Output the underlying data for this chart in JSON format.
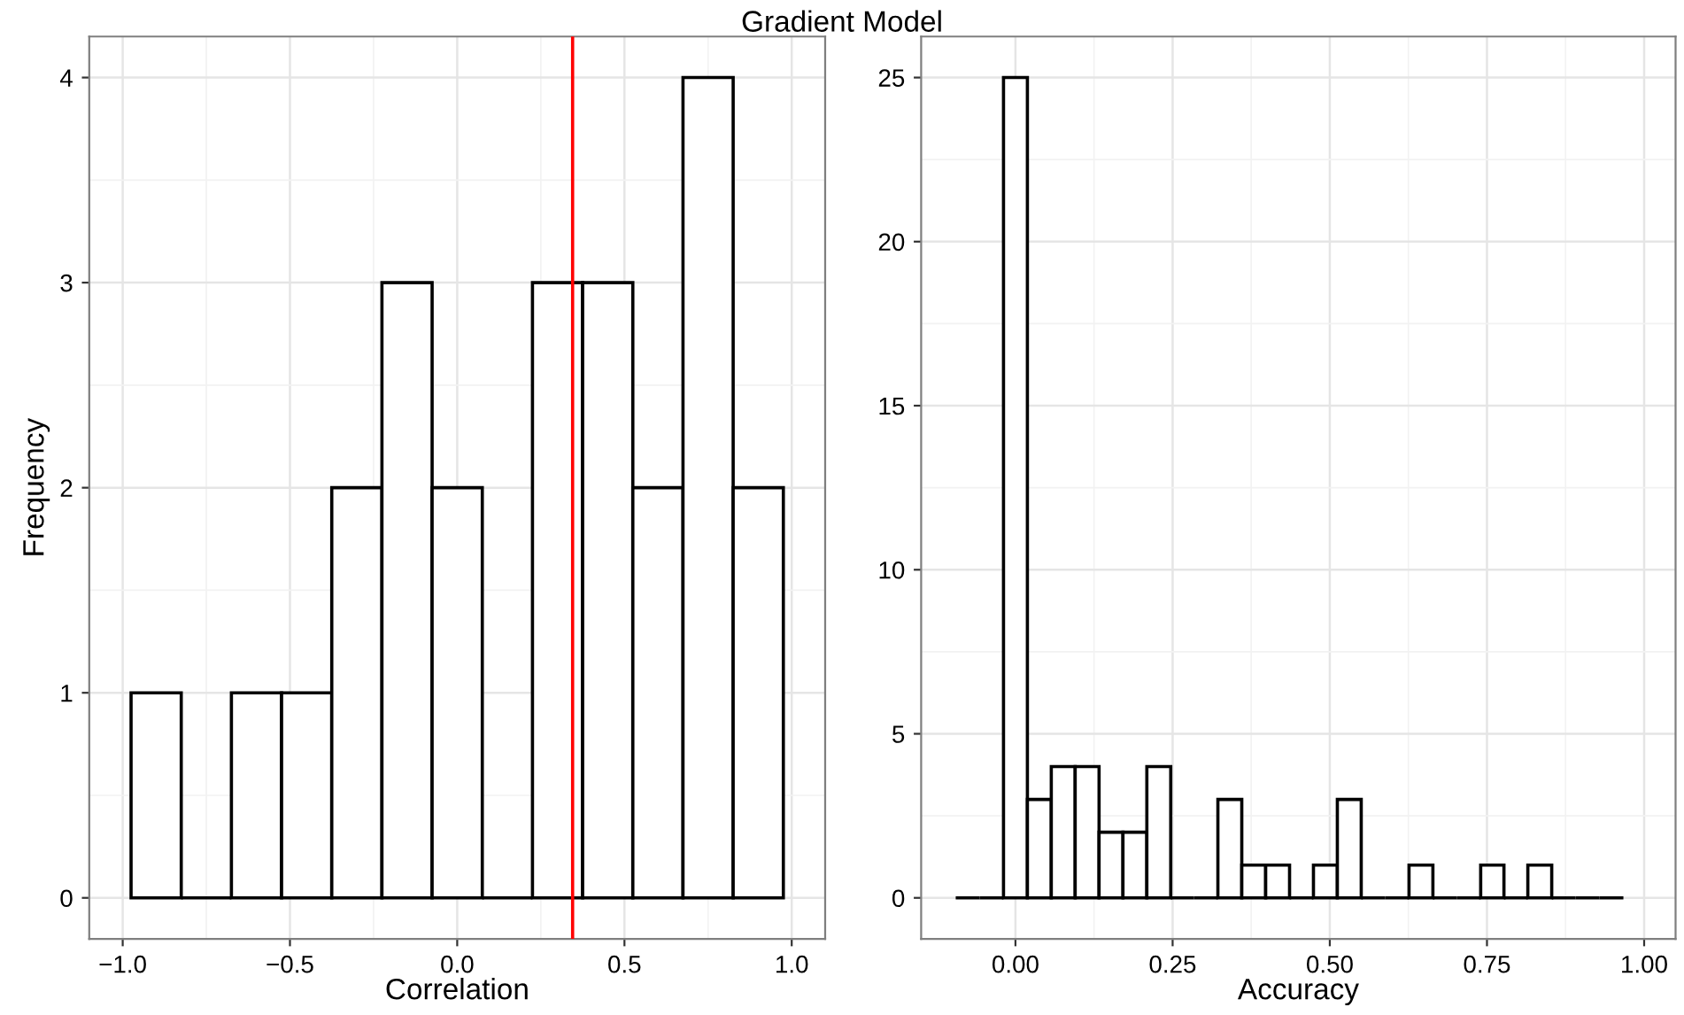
{
  "chart_data": [
    {
      "type": "histogram",
      "title": "Gradient Model",
      "xlabel": "Correlation",
      "ylabel": "Frequency",
      "bins": [
        -0.975,
        -0.825,
        -0.675,
        -0.525,
        -0.375,
        -0.225,
        -0.075,
        0.075,
        0.225,
        0.375,
        0.525,
        0.675,
        0.825,
        0.975
      ],
      "values": [
        1,
        0,
        1,
        1,
        2,
        3,
        2,
        0,
        3,
        3,
        2,
        4,
        2
      ],
      "xlim": [
        -1.1,
        1.1
      ],
      "ylim": [
        -0.2,
        4.2
      ],
      "xticks": [
        {
          "value": -1.0,
          "label": "−1.0"
        },
        {
          "value": -0.5,
          "label": "−0.5"
        },
        {
          "value": 0.0,
          "label": "0.0"
        },
        {
          "value": 0.5,
          "label": "0.5"
        },
        {
          "value": 1.0,
          "label": "1.0"
        }
      ],
      "yticks": [
        0,
        1,
        2,
        3,
        4
      ],
      "ref_lines": [
        {
          "axis": "x",
          "value": 0.345,
          "color": "#ff0000"
        }
      ],
      "grid": true
    },
    {
      "type": "histogram",
      "xlabel": "Accuracy",
      "bins": [
        -0.095,
        -0.057,
        -0.019,
        0.019,
        0.057,
        0.095,
        0.133,
        0.171,
        0.209,
        0.247,
        0.284,
        0.322,
        0.36,
        0.398,
        0.436,
        0.474,
        0.512,
        0.55,
        0.588,
        0.626,
        0.664,
        0.702,
        0.74,
        0.777,
        0.815,
        0.853,
        0.891,
        0.929,
        0.967
      ],
      "values": [
        0,
        0,
        25,
        3,
        4,
        4,
        2,
        2,
        4,
        0,
        0,
        3,
        1,
        1,
        0,
        1,
        3,
        0,
        0,
        1,
        0,
        0,
        1,
        0,
        1,
        0,
        0,
        0
      ],
      "xlim": [
        -0.15,
        1.05
      ],
      "ylim": [
        -1.25,
        26.25
      ],
      "xticks": [
        {
          "value": 0.0,
          "label": "0.00"
        },
        {
          "value": 0.25,
          "label": "0.25"
        },
        {
          "value": 0.5,
          "label": "0.50"
        },
        {
          "value": 0.75,
          "label": "0.75"
        },
        {
          "value": 1.0,
          "label": "1.00"
        }
      ],
      "yticks": [
        0,
        5,
        10,
        15,
        20,
        25
      ],
      "grid": true
    }
  ]
}
